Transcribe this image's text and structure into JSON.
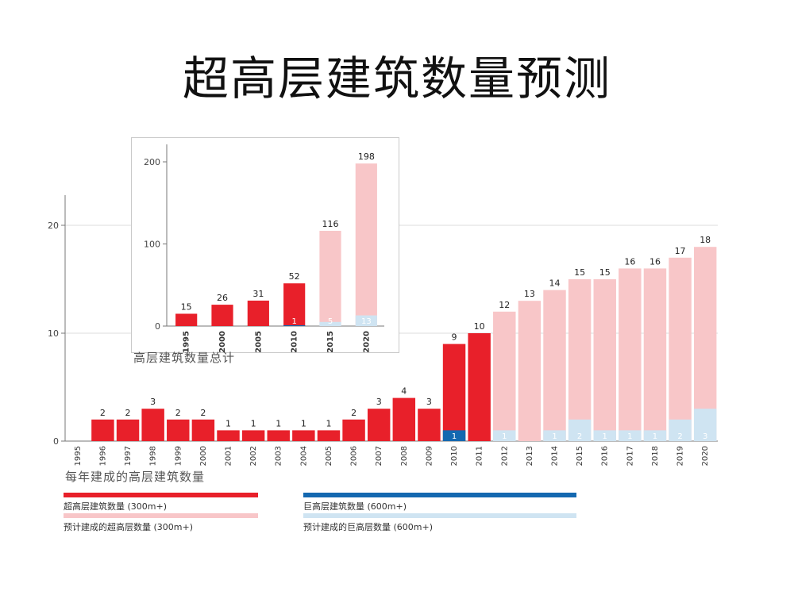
{
  "title": "超高层建筑数量预测",
  "colors": {
    "built_300": "#e8202a",
    "planned_300": "#f8c6c8",
    "built_600": "#1468b0",
    "planned_600": "#cfe4f2"
  },
  "chart_data": [
    {
      "type": "bar",
      "caption": "每年建成的高层建筑数量",
      "categories": [
        "1995",
        "1996",
        "1997",
        "1998",
        "1999",
        "2000",
        "2001",
        "2002",
        "2003",
        "2004",
        "2005",
        "2006",
        "2007",
        "2008",
        "2009",
        "2010",
        "2011",
        "2012",
        "2013",
        "2014",
        "2015",
        "2016",
        "2017",
        "2018",
        "2019",
        "2020"
      ],
      "totals": [
        null,
        2,
        2,
        3,
        2,
        2,
        1,
        1,
        1,
        1,
        1,
        2,
        3,
        4,
        3,
        9,
        10,
        12,
        13,
        14,
        15,
        15,
        16,
        16,
        17,
        18
      ],
      "planned": [
        false,
        false,
        false,
        false,
        false,
        false,
        false,
        false,
        false,
        false,
        false,
        false,
        false,
        false,
        false,
        false,
        false,
        true,
        true,
        true,
        true,
        true,
        true,
        true,
        true,
        true
      ],
      "mega": [
        null,
        null,
        null,
        null,
        null,
        null,
        null,
        null,
        null,
        null,
        null,
        null,
        null,
        null,
        null,
        1,
        null,
        1,
        null,
        1,
        2,
        1,
        1,
        1,
        2,
        3
      ],
      "yticks": [
        0,
        10,
        20
      ],
      "ylim": [
        0,
        20
      ]
    },
    {
      "type": "bar",
      "caption": "高层建筑数量总计",
      "categories": [
        "1995",
        "2000",
        "2005",
        "2010",
        "2015",
        "2020"
      ],
      "totals": [
        15,
        26,
        31,
        52,
        116,
        198
      ],
      "planned": [
        false,
        false,
        false,
        false,
        true,
        true
      ],
      "mega": [
        null,
        null,
        null,
        1,
        5,
        13
      ],
      "yticks": [
        0,
        100,
        200
      ],
      "ylim": [
        0,
        200
      ]
    }
  ],
  "legend": [
    {
      "label": "超高层建筑数量 (300m+)",
      "color": "#e8202a"
    },
    {
      "label": "巨高层建筑数量 (600m+)",
      "color": "#1468b0"
    },
    {
      "label": "预计建成的超高层数量 (300m+)",
      "color": "#f8c6c8"
    },
    {
      "label": "预计建成的巨高层数量 (600m+)",
      "color": "#cfe4f2"
    }
  ]
}
